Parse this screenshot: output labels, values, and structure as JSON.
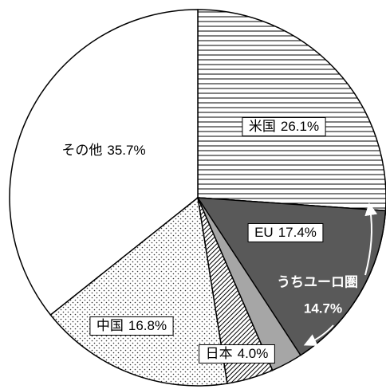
{
  "chart_data": {
    "type": "pie",
    "categories": [
      "米国",
      "EU",
      "日本",
      "中国",
      "その他"
    ],
    "values": [
      26.1,
      17.4,
      4.0,
      16.8,
      35.7
    ],
    "value_labels": [
      "26.1%",
      "17.4%",
      "4.0%",
      "16.8%",
      "35.7%"
    ],
    "fills": [
      "hstripe",
      "#a6a6a6",
      "hatch",
      "dots",
      "#ffffff"
    ],
    "sub": {
      "label": "うちユーロ圏",
      "value": 14.7,
      "value_label": "14.7%",
      "parent": 1,
      "color": "#595959"
    }
  }
}
